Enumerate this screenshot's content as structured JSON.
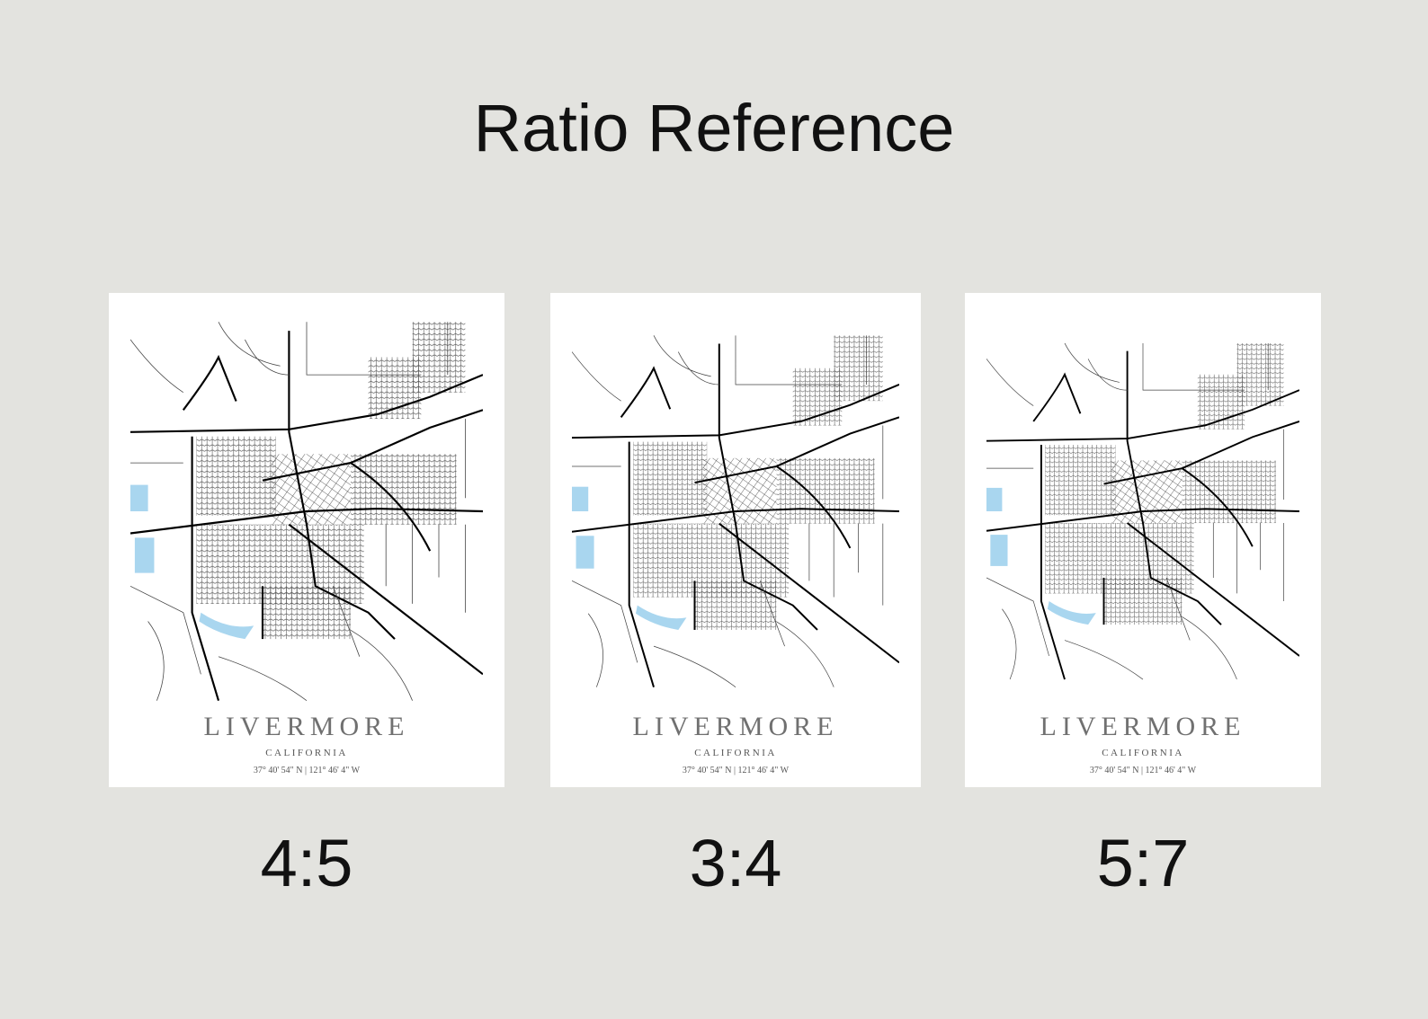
{
  "header": {
    "title": "Ratio Reference"
  },
  "posters": [
    {
      "city": "LIVERMORE",
      "state": "CALIFORNIA",
      "coords": "37° 40' 54\" N | 121° 46' 4\" W",
      "ratio": "4:5"
    },
    {
      "city": "LIVERMORE",
      "state": "CALIFORNIA",
      "coords": "37° 40' 54\" N | 121° 46' 4\" W",
      "ratio": "3:4"
    },
    {
      "city": "LIVERMORE",
      "state": "CALIFORNIA",
      "coords": "37° 40' 54\" N | 121° 46' 4\" W",
      "ratio": "5:7"
    }
  ]
}
